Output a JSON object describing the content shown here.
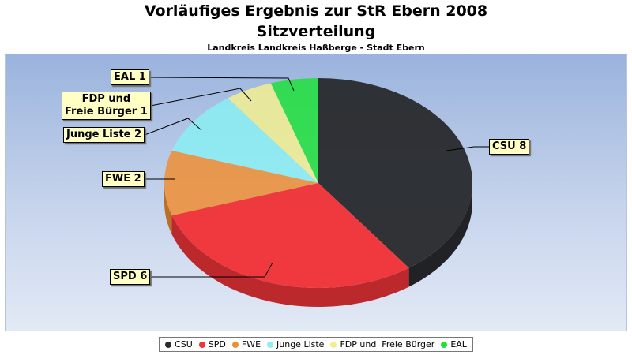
{
  "chart_data": {
    "type": "pie",
    "title": "Vorläufiges Ergebnis zur StR Ebern 2008",
    "subtitle": "Sitzverteilung",
    "subtitle2": "Landkreis Landkreis Haßberge - Stadt Ebern",
    "slices": [
      {
        "name": "CSU",
        "value": 8,
        "color": "#2a2c30",
        "label_lines": [
          "CSU 8"
        ]
      },
      {
        "name": "SPD",
        "value": 6,
        "color": "#f03438",
        "label_lines": [
          "SPD 6"
        ]
      },
      {
        "name": "FWE",
        "value": 2,
        "color": "#ef8e34",
        "label_lines": [
          "FWE 2"
        ]
      },
      {
        "name": "Junge Liste",
        "value": 2,
        "color": "#8aeef2",
        "label_lines": [
          "Junge Liste 2"
        ]
      },
      {
        "name": "FDP und  Freie Bürger",
        "value": 1,
        "color": "#f2ee90",
        "label_lines": [
          "FDP und",
          "Freie Bürger 1"
        ]
      },
      {
        "name": "EAL",
        "value": 1,
        "color": "#1ee03a",
        "label_lines": [
          "EAL 1"
        ]
      }
    ],
    "legend_position": "bottom"
  }
}
